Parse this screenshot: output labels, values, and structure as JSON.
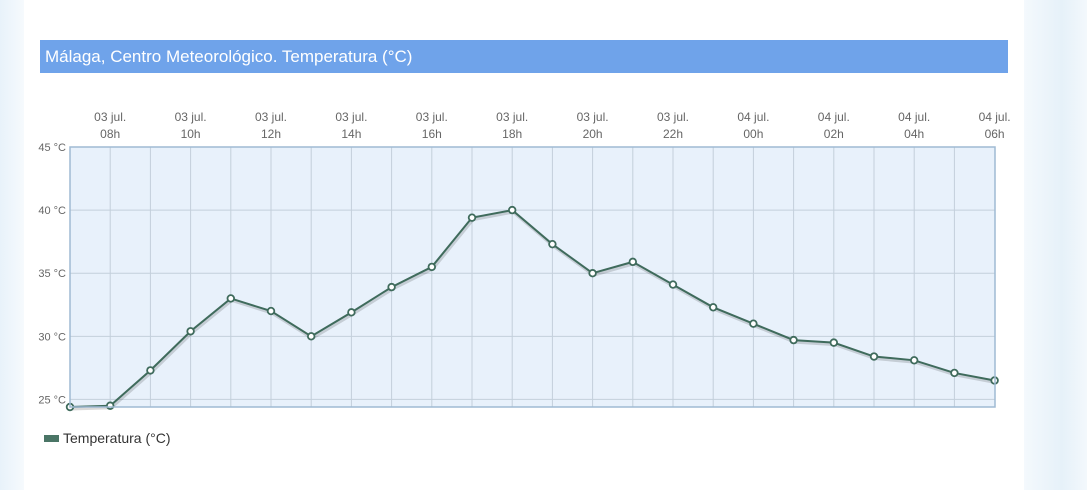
{
  "title": "Málaga, Centro Meteorológico. Temperatura (°C)",
  "colors": {
    "title_bar": "#6fa3ea",
    "line": "#3f6b5c",
    "plot_bg": "#e8f1fb",
    "grid": "#c3cfdb",
    "border": "#9fbad3"
  },
  "legend": {
    "label": "Temperatura (°C)"
  },
  "chart_data": {
    "type": "line",
    "x_tick_labels": [
      [
        "03 jul.",
        "08h"
      ],
      [
        "03 jul.",
        "10h"
      ],
      [
        "03 jul.",
        "12h"
      ],
      [
        "03 jul.",
        "14h"
      ],
      [
        "03 jul.",
        "16h"
      ],
      [
        "03 jul.",
        "18h"
      ],
      [
        "03 jul.",
        "20h"
      ],
      [
        "03 jul.",
        "22h"
      ],
      [
        "04 jul.",
        "00h"
      ],
      [
        "04 jul.",
        "02h"
      ],
      [
        "04 jul.",
        "04h"
      ],
      [
        "04 jul.",
        "06h"
      ]
    ],
    "y_tick_labels": [
      "45 °C",
      "40 °C",
      "35 °C",
      "30 °C",
      "25 °C"
    ],
    "y_ticks": [
      45,
      40,
      35,
      30,
      25
    ],
    "ylim": [
      24.4,
      45
    ],
    "grid": true,
    "legend_position": "bottom-left",
    "series": [
      {
        "name": "Temperatura (°C)",
        "x": [
          "03 jul. 07h",
          "03 jul. 08h",
          "03 jul. 09h",
          "03 jul. 10h",
          "03 jul. 11h",
          "03 jul. 12h",
          "03 jul. 13h",
          "03 jul. 14h",
          "03 jul. 15h",
          "03 jul. 16h",
          "03 jul. 17h",
          "03 jul. 18h",
          "03 jul. 19h",
          "03 jul. 20h",
          "03 jul. 21h",
          "03 jul. 22h",
          "03 jul. 23h",
          "04 jul. 00h",
          "04 jul. 01h",
          "04 jul. 02h",
          "04 jul. 03h",
          "04 jul. 04h",
          "04 jul. 05h",
          "04 jul. 06h"
        ],
        "values": [
          24.4,
          24.5,
          27.3,
          30.4,
          33.0,
          32.0,
          30.0,
          31.9,
          33.9,
          35.5,
          39.4,
          40.0,
          37.3,
          35.0,
          35.9,
          34.1,
          32.3,
          31.0,
          29.7,
          29.5,
          28.4,
          28.1,
          27.1,
          26.5
        ]
      }
    ]
  }
}
